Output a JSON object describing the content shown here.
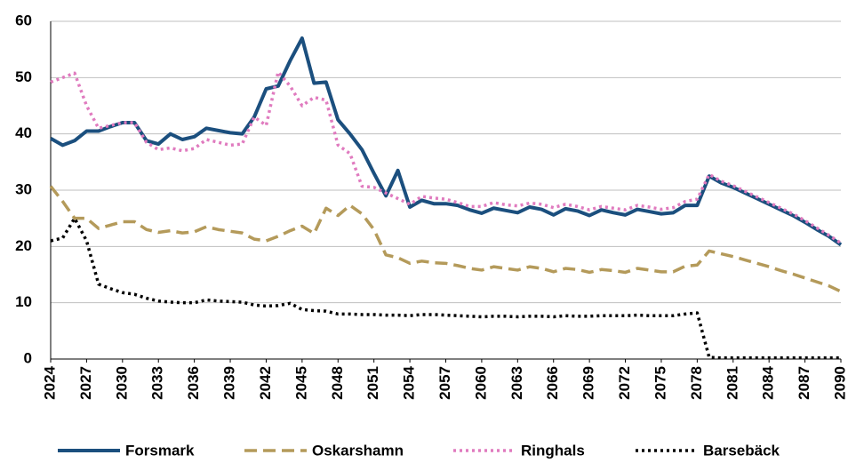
{
  "chart_data": {
    "type": "line",
    "x": [
      2024,
      2025,
      2026,
      2027,
      2028,
      2029,
      2030,
      2031,
      2032,
      2033,
      2034,
      2035,
      2036,
      2037,
      2038,
      2039,
      2040,
      2041,
      2042,
      2043,
      2044,
      2045,
      2046,
      2047,
      2048,
      2049,
      2050,
      2051,
      2052,
      2053,
      2054,
      2055,
      2056,
      2057,
      2058,
      2059,
      2060,
      2061,
      2062,
      2063,
      2064,
      2065,
      2066,
      2067,
      2068,
      2069,
      2070,
      2071,
      2072,
      2073,
      2074,
      2075,
      2076,
      2077,
      2078,
      2079,
      2080,
      2081,
      2082,
      2083,
      2084,
      2085,
      2086,
      2087,
      2088,
      2089,
      2090
    ],
    "series": [
      {
        "name": "Forsmark",
        "color": "#1b4f7e",
        "style": "solid",
        "values": [
          39.2,
          38,
          38.8,
          40.5,
          40.5,
          41.3,
          42,
          42,
          38.8,
          38.2,
          40,
          39,
          39.5,
          41,
          40.6,
          40.2,
          40,
          43,
          48,
          48.5,
          53,
          57,
          49,
          49.2,
          42.5,
          40,
          37.2,
          33,
          29,
          33.5,
          27,
          28.2,
          27.6,
          27.6,
          27.3,
          26.5,
          25.9,
          26.8,
          26.4,
          26,
          27,
          26.6,
          25.6,
          26.7,
          26.3,
          25.5,
          26.5,
          26,
          25.6,
          26.6,
          26.2,
          25.8,
          26,
          27.3,
          27.3,
          32.5,
          31.3,
          30.5,
          29.5,
          28.5,
          27.5,
          26.5,
          25.5,
          24.3,
          23,
          21.8,
          20.3
        ]
      },
      {
        "name": "Oskarshamn",
        "color": "#b49a5a",
        "style": "dashed",
        "values": [
          30.7,
          28,
          25,
          25,
          23.2,
          23.8,
          24.4,
          24.4,
          23,
          22.5,
          22.8,
          22.4,
          22.6,
          23.5,
          23,
          22.7,
          22.4,
          21.3,
          21,
          21.8,
          22.8,
          23.6,
          22.3,
          26.8,
          25.5,
          27.3,
          25.8,
          23,
          18.5,
          18,
          17,
          17.4,
          17.1,
          17,
          16.6,
          16.1,
          15.8,
          16.4,
          16.1,
          15.8,
          16.4,
          16.1,
          15.5,
          16.1,
          15.9,
          15.4,
          15.9,
          15.7,
          15.4,
          16.1,
          15.8,
          15.5,
          15.5,
          16.5,
          16.7,
          19.2,
          18.7,
          18.2,
          17.6,
          17,
          16.4,
          15.7,
          15.1,
          14.4,
          13.7,
          13,
          12
        ]
      },
      {
        "name": "Ringhals",
        "color": "#e07bbf",
        "style": "dotted",
        "values": [
          49.2,
          50,
          50.8,
          45,
          41,
          41.5,
          42,
          42,
          38.5,
          37.2,
          37.5,
          37,
          37.4,
          39,
          38.5,
          38,
          38.2,
          43,
          41.5,
          51,
          48.5,
          45,
          46.5,
          46,
          38,
          36.5,
          30.7,
          30.5,
          29.5,
          28.5,
          27.5,
          28.9,
          28.6,
          28.4,
          27.8,
          27.1,
          27.1,
          27.8,
          27.4,
          27.2,
          27.7,
          27.5,
          26.9,
          27.5,
          27.1,
          26.5,
          27.1,
          26.8,
          26.5,
          27.3,
          27,
          26.6,
          26.9,
          28,
          28.4,
          32.8,
          31.6,
          30.8,
          29.8,
          28.8,
          27.8,
          26.8,
          25.8,
          24.6,
          23.3,
          22,
          20.6
        ]
      },
      {
        "name": "Barsebäck",
        "color": "#000000",
        "style": "dotted",
        "values": [
          21,
          21.5,
          25,
          21,
          13.3,
          12.5,
          11.8,
          11.5,
          10.8,
          10.3,
          10.1,
          10,
          10,
          10.5,
          10.3,
          10.2,
          10.1,
          9.6,
          9.4,
          9.5,
          9.9,
          8.8,
          8.6,
          8.5,
          8,
          8,
          7.9,
          7.9,
          7.8,
          7.8,
          7.7,
          7.9,
          7.9,
          7.8,
          7.7,
          7.6,
          7.5,
          7.6,
          7.6,
          7.5,
          7.6,
          7.6,
          7.5,
          7.7,
          7.6,
          7.6,
          7.7,
          7.7,
          7.7,
          7.8,
          7.7,
          7.7,
          7.7,
          8,
          8.2,
          0.3,
          0.2,
          0.2,
          0.2,
          0.2,
          0.2,
          0.2,
          0.2,
          0.2,
          0.2,
          0.2,
          0.2
        ]
      }
    ],
    "xlim": [
      2024,
      2090
    ],
    "xticks": [
      2024,
      2027,
      2030,
      2033,
      2036,
      2039,
      2042,
      2045,
      2048,
      2051,
      2054,
      2057,
      2060,
      2063,
      2066,
      2069,
      2072,
      2075,
      2078,
      2081,
      2084,
      2087,
      2090
    ],
    "ylim": [
      0,
      60
    ],
    "yticks": [
      0,
      10,
      20,
      30,
      40,
      50,
      60
    ],
    "grid": true,
    "legend": "bottom"
  }
}
